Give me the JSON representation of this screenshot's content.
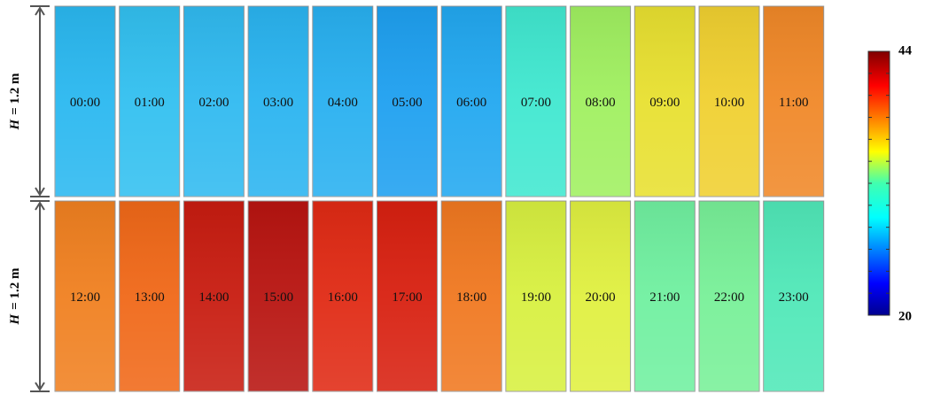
{
  "figure": {
    "rows": [
      {
        "height_label": {
          "variable": "H",
          "text": "= 1.2 m"
        },
        "panels": [
          {
            "label": "00:00",
            "color": "#2ab8f0"
          },
          {
            "label": "01:00",
            "color": "#32c0f0"
          },
          {
            "label": "02:00",
            "color": "#30baf0"
          },
          {
            "label": "03:00",
            "color": "#2ab4f0"
          },
          {
            "label": "04:00",
            "color": "#28b0f0"
          },
          {
            "label": "05:00",
            "color": "#1ea0f0"
          },
          {
            "label": "06:00",
            "color": "#22a8f0"
          },
          {
            "label": "07:00",
            "color": "#40e8d0"
          },
          {
            "label": "08:00",
            "color": "#a0f060"
          },
          {
            "label": "09:00",
            "color": "#e8e030"
          },
          {
            "label": "10:00",
            "color": "#f0d030"
          },
          {
            "label": "11:00",
            "color": "#f08828"
          }
        ]
      },
      {
        "height_label": {
          "variable": "H",
          "text": "= 1.2 m"
        },
        "panels": [
          {
            "label": "12:00",
            "color": "#f08020"
          },
          {
            "label": "13:00",
            "color": "#f06818"
          },
          {
            "label": "14:00",
            "color": "#c81c10"
          },
          {
            "label": "15:00",
            "color": "#b81410"
          },
          {
            "label": "16:00",
            "color": "#e02a14"
          },
          {
            "label": "17:00",
            "color": "#d82010"
          },
          {
            "label": "18:00",
            "color": "#f07820"
          },
          {
            "label": "19:00",
            "color": "#d8f040"
          },
          {
            "label": "20:00",
            "color": "#e0f040"
          },
          {
            "label": "21:00",
            "color": "#70f0a0"
          },
          {
            "label": "22:00",
            "color": "#78f098"
          },
          {
            "label": "23:00",
            "color": "#50e8b8"
          }
        ]
      }
    ],
    "colorbar": {
      "max": "44",
      "min": "20"
    }
  }
}
